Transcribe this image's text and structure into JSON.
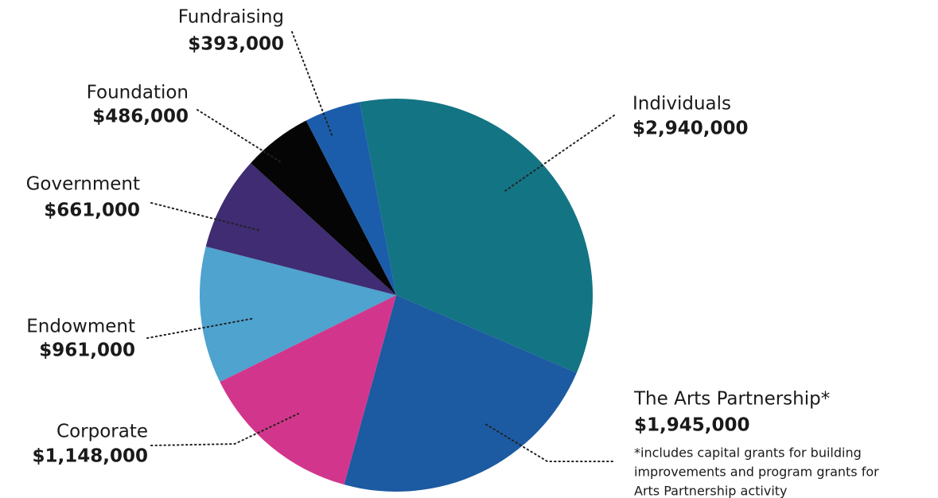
{
  "chart_data": {
    "type": "pie",
    "categories": [
      "Individuals",
      "The Arts Partnership*",
      "Corporate",
      "Endowment",
      "Government",
      "Foundation",
      "Fundraising"
    ],
    "values": [
      2940000,
      1945000,
      1148000,
      961000,
      661000,
      486000,
      393000
    ],
    "value_labels": [
      "$2,940,000",
      "$1,945,000",
      "$1,148,000",
      "$961,000",
      "$661,000",
      "$486,000",
      "$393,000"
    ],
    "colors": [
      "#137484",
      "#1c5aa2",
      "#d2368c",
      "#4ea3cf",
      "#3f2c72",
      "#050505",
      "#1b5daa"
    ],
    "note": [
      "*includes capital grants for building",
      "improvements and program grants for",
      "Arts Partnership activity"
    ]
  }
}
